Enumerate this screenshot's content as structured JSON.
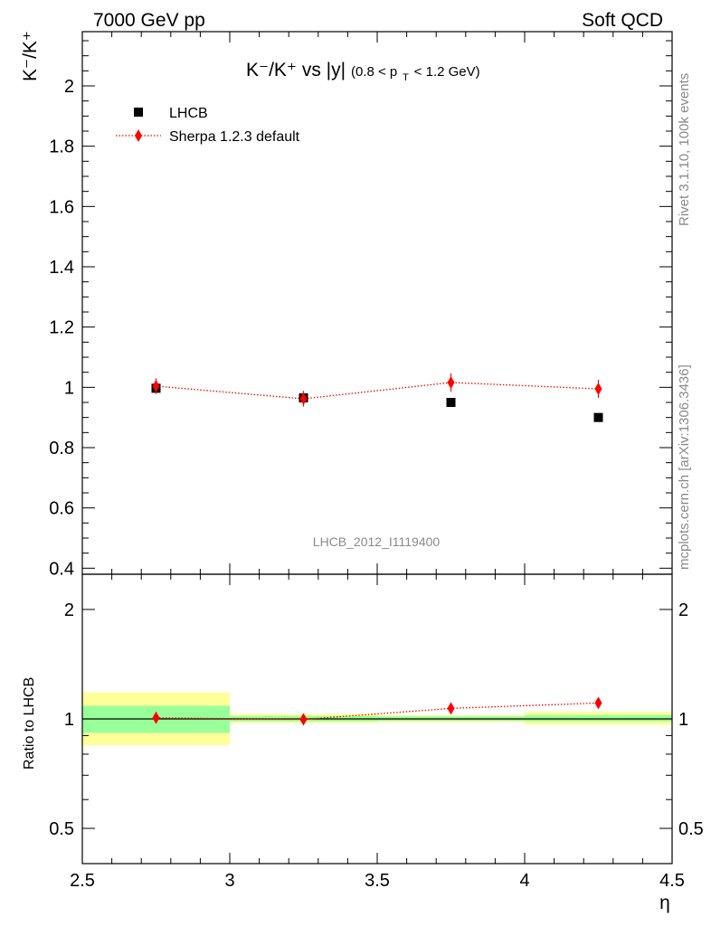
{
  "header": {
    "left": "7000 GeV pp",
    "right": "Soft QCD"
  },
  "side": {
    "top": "Rivet 3.1.10,  100k events",
    "bottom": "mcplots.cern.ch [arXiv:1306.3436]"
  },
  "analysis_tag": "LHCB_2012_I1119400",
  "colors": {
    "data": "#000000",
    "mc": "#ff0000",
    "band_inner": "#99ff99",
    "band_outer": "#ffff99"
  },
  "chart_data": [
    {
      "type": "scatter",
      "title": {
        "main": "K⁻/K⁺ vs |y|",
        "sub": "(0.8 < p",
        "sub_idx": "T",
        "sub_end": " < 1.2 GeV)"
      },
      "ylabel": "K⁻/K⁺",
      "xlim": [
        2.5,
        4.5
      ],
      "ylim": [
        0.38,
        2.18
      ],
      "y_ticks": [
        "0.4",
        "0.6",
        "0.8",
        "1",
        "1.2",
        "1.4",
        "1.6",
        "1.8",
        "2"
      ],
      "legend_position": "top-left",
      "series": [
        {
          "name": "LHCB",
          "style": "square-marker",
          "x": [
            2.75,
            3.25,
            3.75,
            4.25
          ],
          "y": [
            0.997,
            0.965,
            0.95,
            0.9
          ],
          "yerr": [
            0.012,
            0.01,
            0.008,
            0.008
          ]
        },
        {
          "name": "Sherpa 1.2.3 default",
          "style": "diamond-dotted-line",
          "x": [
            2.75,
            3.25,
            3.75,
            4.25
          ],
          "y": [
            1.004,
            0.962,
            1.016,
            0.995
          ],
          "yerr": [
            0.026,
            0.026,
            0.03,
            0.03
          ]
        }
      ]
    },
    {
      "type": "scatter",
      "ylabel": "Ratio to LHCB",
      "xlabel": "η",
      "log_y": true,
      "xlim": [
        2.5,
        4.5
      ],
      "ylim": [
        0.4,
        2.5
      ],
      "x_ticks": [
        "2.5",
        "3",
        "3.5",
        "4",
        "4.5"
      ],
      "y_ticks": [
        "0.5",
        "1",
        "2"
      ],
      "bands": {
        "x_edges": [
          2.5,
          3.0,
          3.5,
          4.0,
          4.5
        ],
        "inner_low": [
          0.915,
          0.985,
          0.988,
          0.985
        ],
        "inner_high": [
          1.087,
          1.019,
          1.016,
          1.025
        ],
        "outer_low": [
          0.846,
          0.975,
          0.981,
          0.963
        ],
        "outer_high": [
          1.182,
          1.031,
          1.024,
          1.046
        ]
      },
      "series": [
        {
          "name": "Sherpa 1.2.3 default",
          "x": [
            2.75,
            3.25,
            3.75,
            4.25
          ],
          "y": [
            1.007,
            0.997,
            1.069,
            1.106
          ],
          "yerr": [
            0.017,
            0.012,
            0.02,
            0.02
          ]
        }
      ]
    }
  ]
}
